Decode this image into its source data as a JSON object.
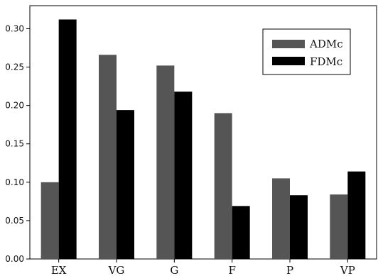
{
  "chart_data": {
    "type": "bar",
    "categories": [
      "EX",
      "VG",
      "G",
      "F",
      "P",
      "VP"
    ],
    "series": [
      {
        "name": "ADMc",
        "values": [
          0.1,
          0.266,
          0.252,
          0.19,
          0.105,
          0.084
        ],
        "color": "#555555"
      },
      {
        "name": "FDMc",
        "values": [
          0.312,
          0.194,
          0.218,
          0.069,
          0.083,
          0.114
        ],
        "color": "#000000"
      }
    ],
    "yticks": [
      "0.00",
      "0.05",
      "0.10",
      "0.15",
      "0.20",
      "0.25",
      "0.30"
    ],
    "ylim": [
      0,
      0.33
    ],
    "grid": false,
    "legend_position": "top-right",
    "title": "",
    "xlabel": "",
    "ylabel": ""
  }
}
